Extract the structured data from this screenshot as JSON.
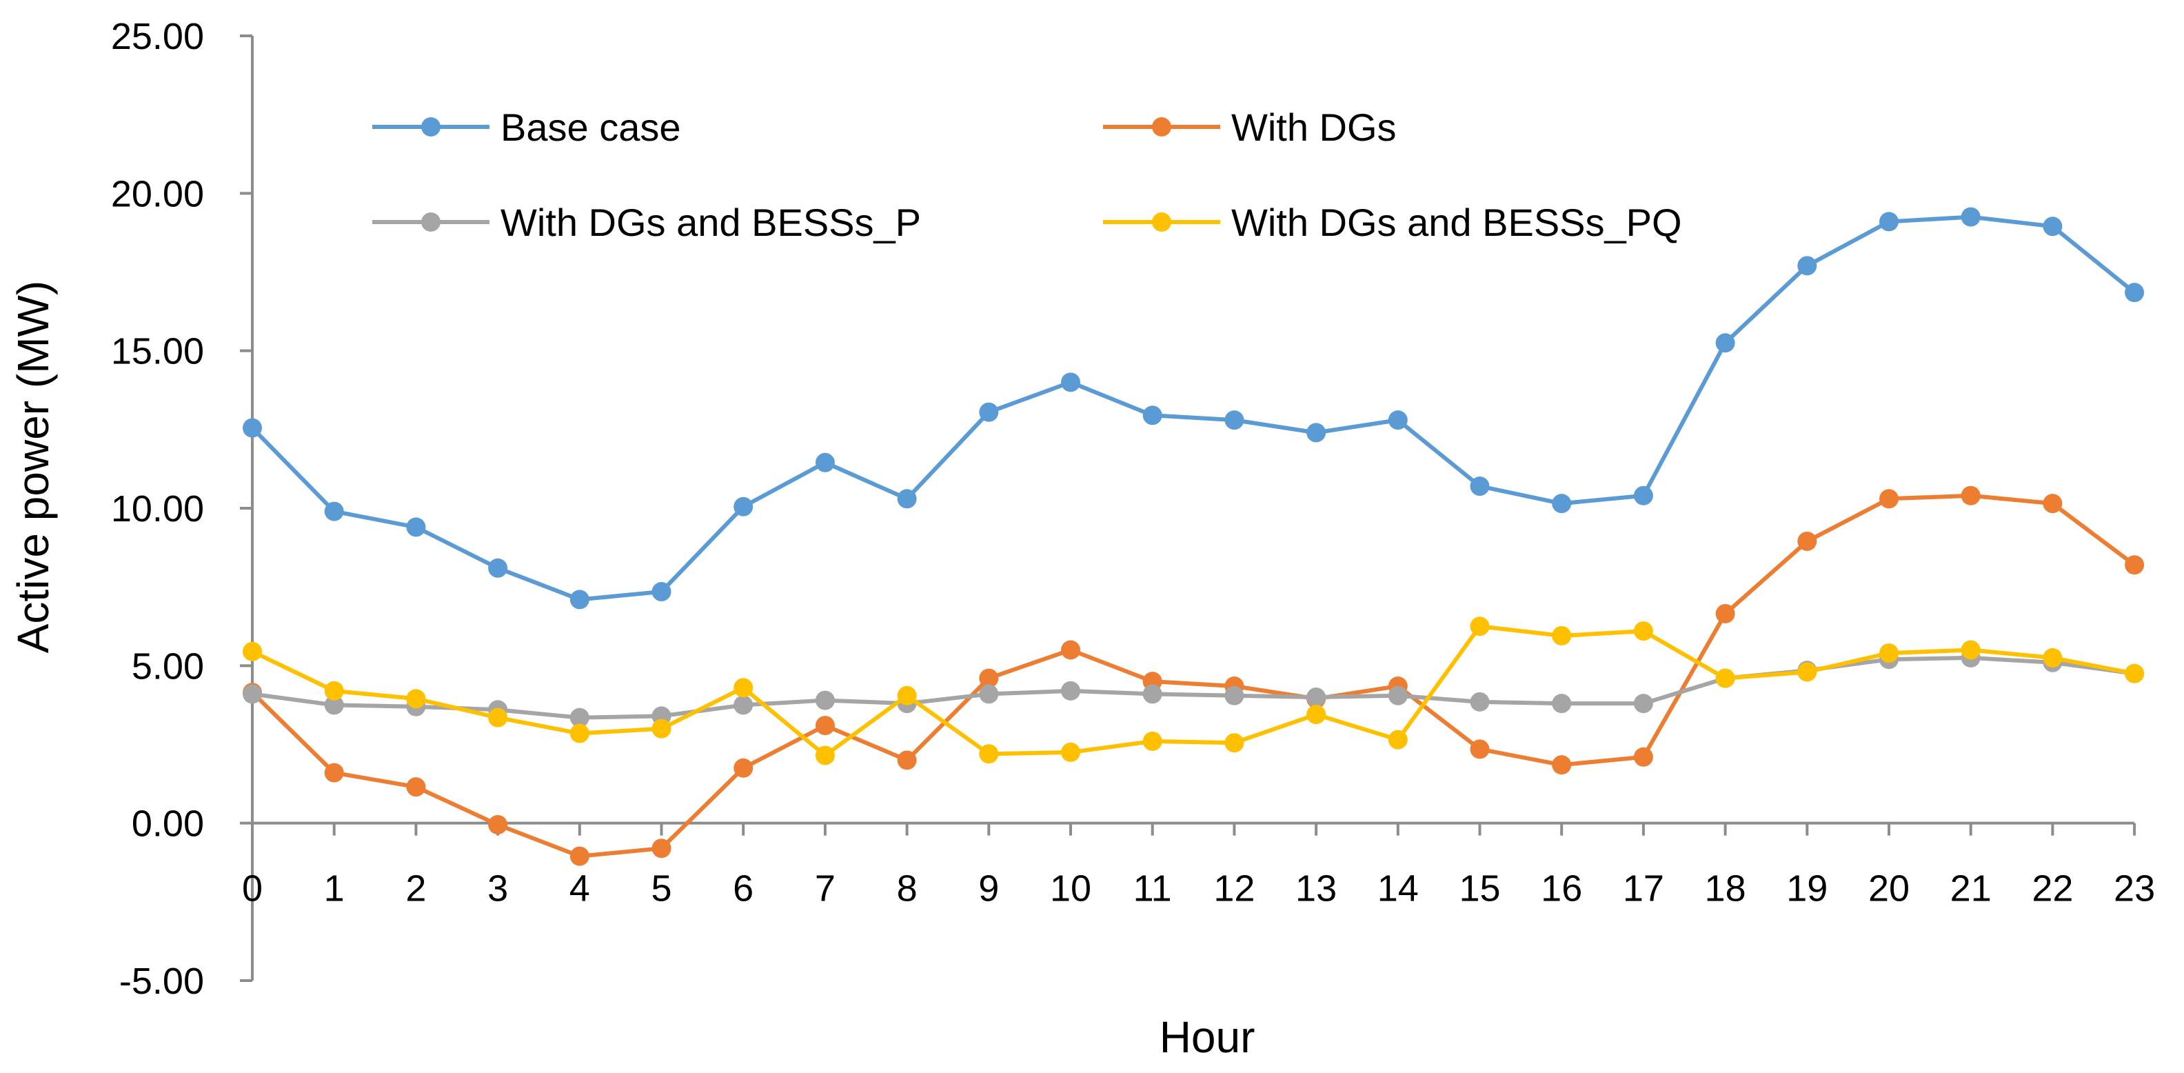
{
  "chart_data": {
    "type": "line",
    "title": "",
    "xlabel": "Hour",
    "ylabel": "Active power (MW)",
    "ylim": [
      -5,
      25
    ],
    "ytick_step": 5,
    "grid": false,
    "legend_position": "top",
    "x": [
      0,
      1,
      2,
      3,
      4,
      5,
      6,
      7,
      8,
      9,
      10,
      11,
      12,
      13,
      14,
      15,
      16,
      17,
      18,
      19,
      20,
      21,
      22,
      23
    ],
    "x_tick_labels": [
      "0",
      "1",
      "2",
      "3",
      "4",
      "5",
      "6",
      "7",
      "8",
      "9",
      "10",
      "11",
      "12",
      "13",
      "14",
      "15",
      "16",
      "17",
      "18",
      "19",
      "20",
      "21",
      "22",
      "23"
    ],
    "y_tick_labels": [
      "-5.00",
      "0.00",
      "5.00",
      "10.00",
      "15.00",
      "20.00",
      "25.00"
    ],
    "series": [
      {
        "name": "Base case",
        "color": "#5B9BD5",
        "values": [
          12.55,
          9.9,
          9.4,
          8.1,
          7.1,
          7.35,
          10.05,
          11.45,
          10.3,
          13.05,
          14.0,
          12.95,
          12.8,
          12.4,
          12.8,
          10.7,
          10.15,
          10.4,
          15.25,
          17.7,
          19.1,
          19.25,
          18.95,
          16.85
        ]
      },
      {
        "name": "With DGs",
        "color": "#ED7D31",
        "values": [
          4.15,
          1.6,
          1.15,
          -0.05,
          -1.05,
          -0.8,
          1.75,
          3.1,
          2.0,
          4.6,
          5.5,
          4.5,
          4.35,
          3.95,
          4.35,
          2.35,
          1.85,
          2.1,
          6.65,
          8.95,
          10.3,
          10.4,
          10.15,
          8.2
        ]
      },
      {
        "name": "With DGs and BESSs_P",
        "color": "#A5A5A5",
        "values": [
          4.1,
          3.75,
          3.7,
          3.6,
          3.35,
          3.4,
          3.75,
          3.9,
          3.8,
          4.1,
          4.2,
          4.1,
          4.05,
          4.0,
          4.05,
          3.85,
          3.8,
          3.8,
          4.6,
          4.85,
          5.2,
          5.25,
          5.1,
          4.75
        ]
      },
      {
        "name": "With DGs and BESSs_PQ",
        "color": "#FFC000",
        "values": [
          5.45,
          4.2,
          3.95,
          3.35,
          2.85,
          3.0,
          4.3,
          2.15,
          4.05,
          2.2,
          2.25,
          2.6,
          2.55,
          3.45,
          2.65,
          6.25,
          5.95,
          6.1,
          4.6,
          4.8,
          5.4,
          5.5,
          5.25,
          4.75
        ]
      }
    ]
  }
}
